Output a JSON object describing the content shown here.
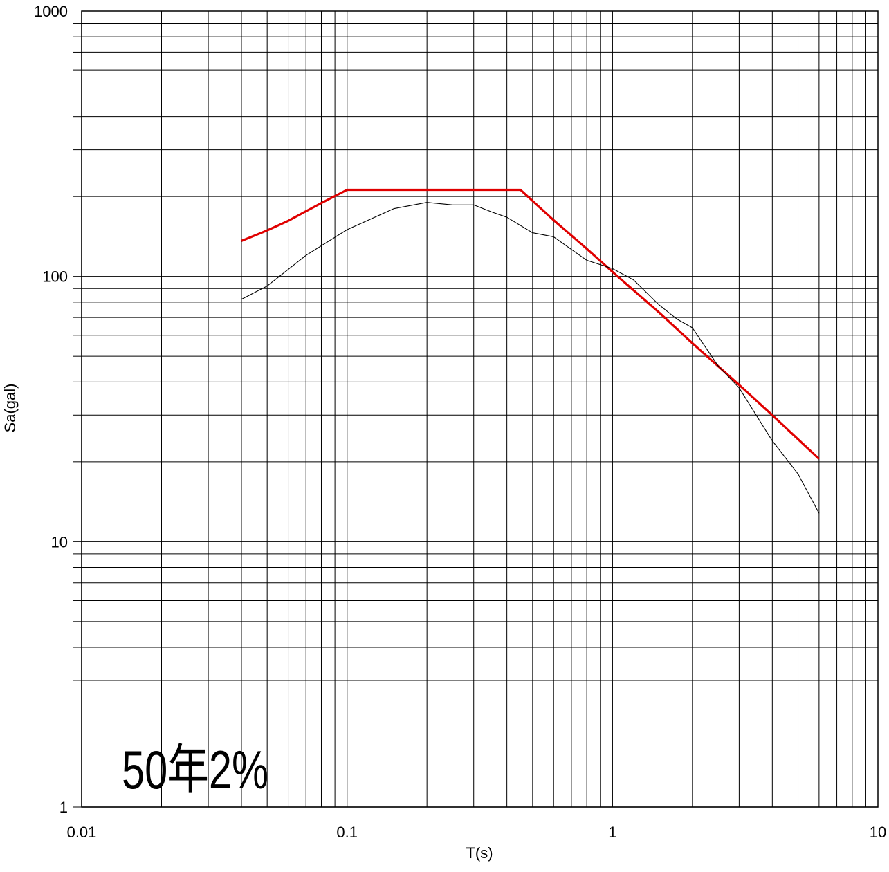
{
  "chart_data": {
    "type": "line",
    "xlabel": "T(s)",
    "ylabel": "Sa(gal)",
    "xscale": "log",
    "yscale": "log",
    "xlim": [
      0.01,
      10
    ],
    "ylim": [
      1,
      1000
    ],
    "grid": true,
    "x_tick_labels": [
      {
        "value": 0.01,
        "label": "0.01"
      },
      {
        "value": 0.1,
        "label": "0.1"
      },
      {
        "value": 1,
        "label": "1"
      },
      {
        "value": 10,
        "label": "10"
      }
    ],
    "y_tick_labels": [
      {
        "value": 1,
        "label": "1"
      },
      {
        "value": 10,
        "label": "10"
      },
      {
        "value": 100,
        "label": "100"
      },
      {
        "value": 1000,
        "label": "1000"
      }
    ],
    "annotation": "50年2%",
    "series": [
      {
        "color": "#e00000",
        "points": [
          [
            0.04,
            136
          ],
          [
            0.05,
            149
          ],
          [
            0.06,
            162
          ],
          [
            0.07,
            176
          ],
          [
            0.08,
            189
          ],
          [
            0.1,
            212
          ],
          [
            0.45,
            212
          ],
          [
            0.6,
            163
          ],
          [
            0.8,
            127
          ],
          [
            1.0,
            104
          ],
          [
            1.5,
            73
          ],
          [
            2.0,
            56
          ],
          [
            3.0,
            39
          ],
          [
            4.0,
            30
          ],
          [
            6.0,
            20.5
          ]
        ]
      },
      {
        "color": "#000000",
        "points": [
          [
            0.04,
            82
          ],
          [
            0.05,
            92
          ],
          [
            0.07,
            120
          ],
          [
            0.1,
            150
          ],
          [
            0.15,
            180
          ],
          [
            0.2,
            190
          ],
          [
            0.25,
            186
          ],
          [
            0.3,
            186
          ],
          [
            0.35,
            175
          ],
          [
            0.4,
            167
          ],
          [
            0.5,
            146
          ],
          [
            0.6,
            141
          ],
          [
            0.8,
            115
          ],
          [
            1.0,
            107
          ],
          [
            1.2,
            97
          ],
          [
            1.5,
            78
          ],
          [
            1.75,
            69
          ],
          [
            2.0,
            64
          ],
          [
            2.5,
            46
          ],
          [
            3.0,
            38
          ],
          [
            4.0,
            24
          ],
          [
            5.0,
            18
          ],
          [
            6.0,
            12.8
          ]
        ]
      }
    ]
  }
}
